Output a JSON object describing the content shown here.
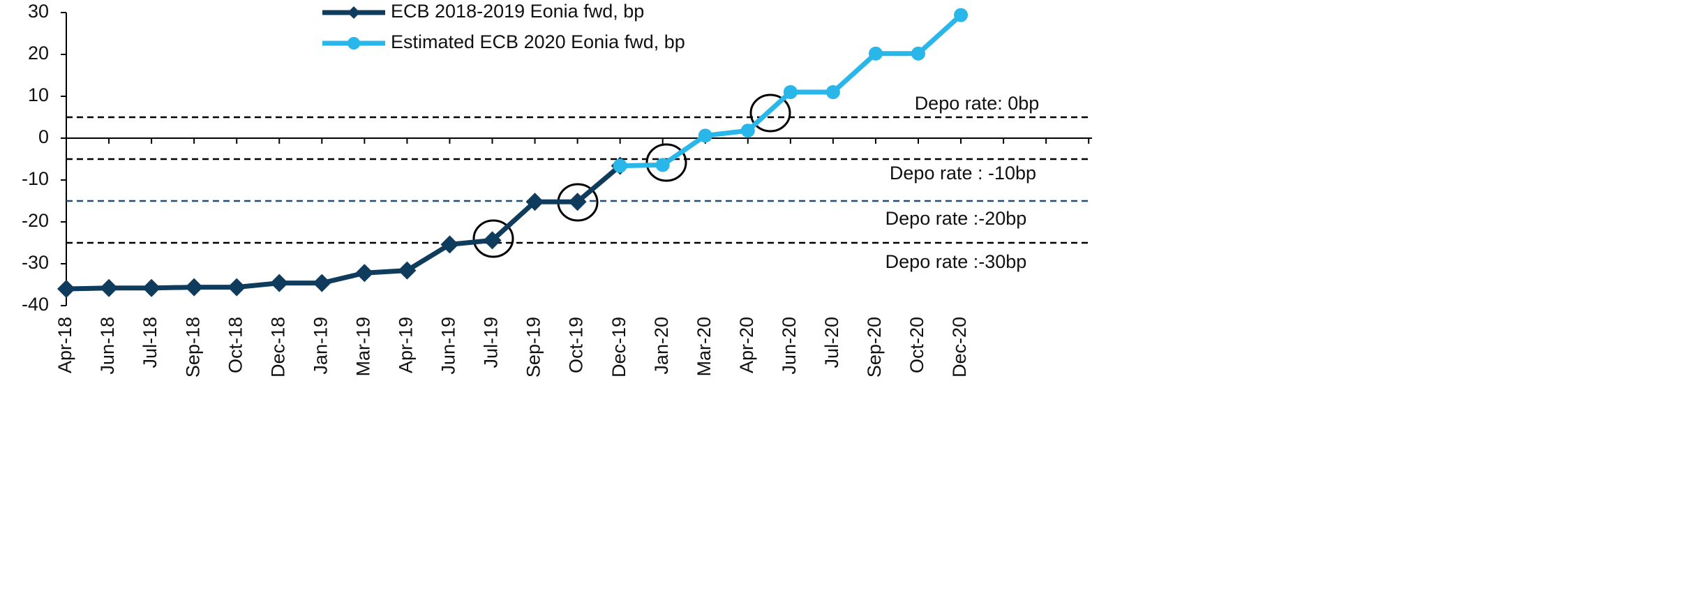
{
  "chart_data": {
    "type": "line",
    "categories": [
      "Apr-18",
      "Jun-18",
      "Jul-18",
      "Sep-18",
      "Oct-18",
      "Dec-18",
      "Jan-19",
      "Mar-19",
      "Apr-19",
      "Jun-19",
      "Jul-19",
      "Sep-19",
      "Oct-19",
      "Dec-19",
      "Jan-20",
      "Mar-20",
      "Apr-20",
      "Jun-20",
      "Jul-20",
      "Sep-20",
      "Oct-20",
      "Dec-20",
      null,
      null,
      null
    ],
    "series": [
      {
        "name": "ECB 2018-2019 Eonia fwd, bp",
        "color": "#0f3b5c",
        "marker": "diamond",
        "values": [
          -36,
          -35.8,
          -35.8,
          -35.6,
          -35.6,
          -34.6,
          -34.6,
          -32.2,
          -31.6,
          -25.4,
          -24.4,
          -15.2,
          -15.2,
          -6.6,
          null,
          null,
          null,
          null,
          null,
          null,
          null,
          null,
          null,
          null,
          null
        ]
      },
      {
        "name": "Estimated ECB 2020  Eonia fwd, bp",
        "color": "#29b6e8",
        "marker": "circle",
        "values": [
          null,
          null,
          null,
          null,
          null,
          null,
          null,
          null,
          null,
          null,
          null,
          null,
          null,
          -6.6,
          -6.4,
          0.6,
          1.8,
          11,
          11,
          20.2,
          20.2,
          29.4,
          null,
          null,
          null
        ]
      }
    ],
    "ylim": [
      -40,
      30
    ],
    "yticks": [
      -40,
      -30,
      -20,
      -10,
      0,
      10,
      20,
      30
    ],
    "reference_lines": [
      {
        "value": 5,
        "label": "Depo rate: 0bp",
        "color": "#000000"
      },
      {
        "value": -5,
        "label": "Depo rate : -10bp",
        "color": "#000000"
      },
      {
        "value": -15,
        "label": "Depo rate :-20bp",
        "color": "#1f4e79"
      },
      {
        "value": -25,
        "label": "Depo rate :-30bp",
        "color": "#000000"
      }
    ]
  }
}
